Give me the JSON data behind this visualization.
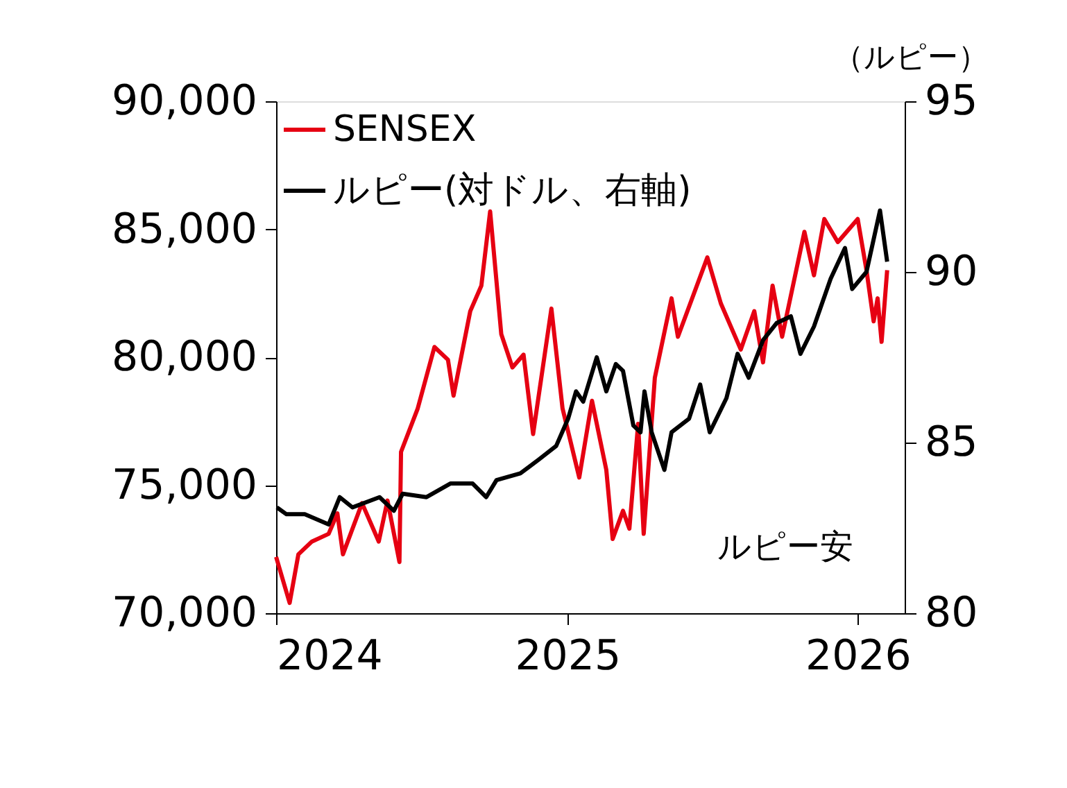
{
  "chart_data": {
    "type": "line",
    "y2label": "（ルピー）",
    "legend": "top left",
    "grid": false,
    "line_style": "solid",
    "marker": "none",
    "xlim": [
      "2024-01-01",
      "2026-03-01"
    ],
    "xticks": [
      {
        "value": "2024-01-01",
        "label": "2024"
      },
      {
        "value": "2025-01-01",
        "label": "2025"
      },
      {
        "value": "2026-01-01",
        "label": "2026"
      }
    ],
    "ylim": [
      70000,
      90000
    ],
    "yticks": [
      {
        "value": 70000,
        "label": "70,000"
      },
      {
        "value": 75000,
        "label": "75,000"
      },
      {
        "value": 80000,
        "label": "80,000"
      },
      {
        "value": 85000,
        "label": "85,000"
      },
      {
        "value": 90000,
        "label": "90,000"
      }
    ],
    "y2lim": [
      80,
      95
    ],
    "y2ticks": [
      80,
      85,
      90,
      95
    ],
    "annotations": [
      "ルピー安"
    ],
    "series": [
      {
        "name": "SENSEX",
        "color": "#e60012",
        "x": [
          "2024-01-01",
          "2024-01-18",
          "2024-01-29",
          "2024-02-15",
          "2024-03-07",
          "2024-03-18",
          "2024-03-25",
          "2024-04-18",
          "2024-05-09",
          "2024-05-20",
          "2024-06-04",
          "2024-06-06",
          "2024-06-27",
          "2024-07-18",
          "2024-08-04",
          "2024-08-11",
          "2024-09-01",
          "2024-09-15",
          "2024-09-26",
          "2024-10-10",
          "2024-10-24",
          "2024-11-07",
          "2024-11-19",
          "2024-12-12",
          "2024-12-26",
          "2025-01-16",
          "2025-02-01",
          "2025-02-19",
          "2025-02-27",
          "2025-03-12",
          "2025-03-20",
          "2025-03-31",
          "2025-04-07",
          "2025-04-21",
          "2025-05-12",
          "2025-05-20",
          "2025-06-26",
          "2025-07-13",
          "2025-08-07",
          "2025-08-24",
          "2025-09-04",
          "2025-09-16",
          "2025-09-28",
          "2025-10-26",
          "2025-11-07",
          "2025-11-20",
          "2025-12-07",
          "2026-01-01",
          "2026-01-12",
          "2026-01-21",
          "2026-01-26",
          "2026-01-31",
          "2026-02-07"
        ],
        "values": [
          72200,
          70400,
          72300,
          72800,
          73100,
          73900,
          72300,
          74300,
          72800,
          74400,
          72000,
          76300,
          78000,
          80400,
          79900,
          78500,
          81800,
          82800,
          85700,
          80900,
          79600,
          80100,
          77000,
          81900,
          78000,
          75300,
          78300,
          75600,
          72900,
          74000,
          73300,
          77400,
          73100,
          79200,
          82300,
          80800,
          83900,
          82100,
          80300,
          81800,
          79800,
          82800,
          80800,
          84900,
          83200,
          85400,
          84500,
          85400,
          83400,
          81400,
          82300,
          80600,
          83400
        ]
      },
      {
        "name": "ルピー(対ドル、右軸)",
        "color": "#000000",
        "axis": "y2",
        "x": [
          "2024-01-02",
          "2024-01-14",
          "2024-02-06",
          "2024-03-07",
          "2024-03-21",
          "2024-04-06",
          "2024-05-10",
          "2024-05-28",
          "2024-06-08",
          "2024-07-08",
          "2024-08-07",
          "2024-09-04",
          "2024-09-21",
          "2024-10-04",
          "2024-11-03",
          "2024-11-26",
          "2024-12-18",
          "2025-01-02",
          "2025-01-12",
          "2025-01-21",
          "2025-02-07",
          "2025-02-19",
          "2025-03-03",
          "2025-03-12",
          "2025-03-25",
          "2025-04-03",
          "2025-04-08",
          "2025-04-17",
          "2025-05-03",
          "2025-05-12",
          "2025-06-03",
          "2025-06-17",
          "2025-06-29",
          "2025-07-20",
          "2025-08-03",
          "2025-08-17",
          "2025-09-04",
          "2025-09-21",
          "2025-10-09",
          "2025-10-21",
          "2025-11-07",
          "2025-11-28",
          "2025-12-16",
          "2025-12-25",
          "2026-01-12",
          "2026-01-29",
          "2026-02-07"
        ],
        "values": [
          83.1,
          82.9,
          82.9,
          82.6,
          83.4,
          83.1,
          83.4,
          83.0,
          83.5,
          83.4,
          83.8,
          83.8,
          83.4,
          83.9,
          84.1,
          84.5,
          84.9,
          85.7,
          86.5,
          86.2,
          87.5,
          86.5,
          87.3,
          87.1,
          85.5,
          85.3,
          86.5,
          85.3,
          84.2,
          85.3,
          85.7,
          86.7,
          85.3,
          86.3,
          87.6,
          86.9,
          88.0,
          88.5,
          88.7,
          87.6,
          88.4,
          89.8,
          90.7,
          89.5,
          90.0,
          91.8,
          90.3
        ]
      }
    ]
  }
}
